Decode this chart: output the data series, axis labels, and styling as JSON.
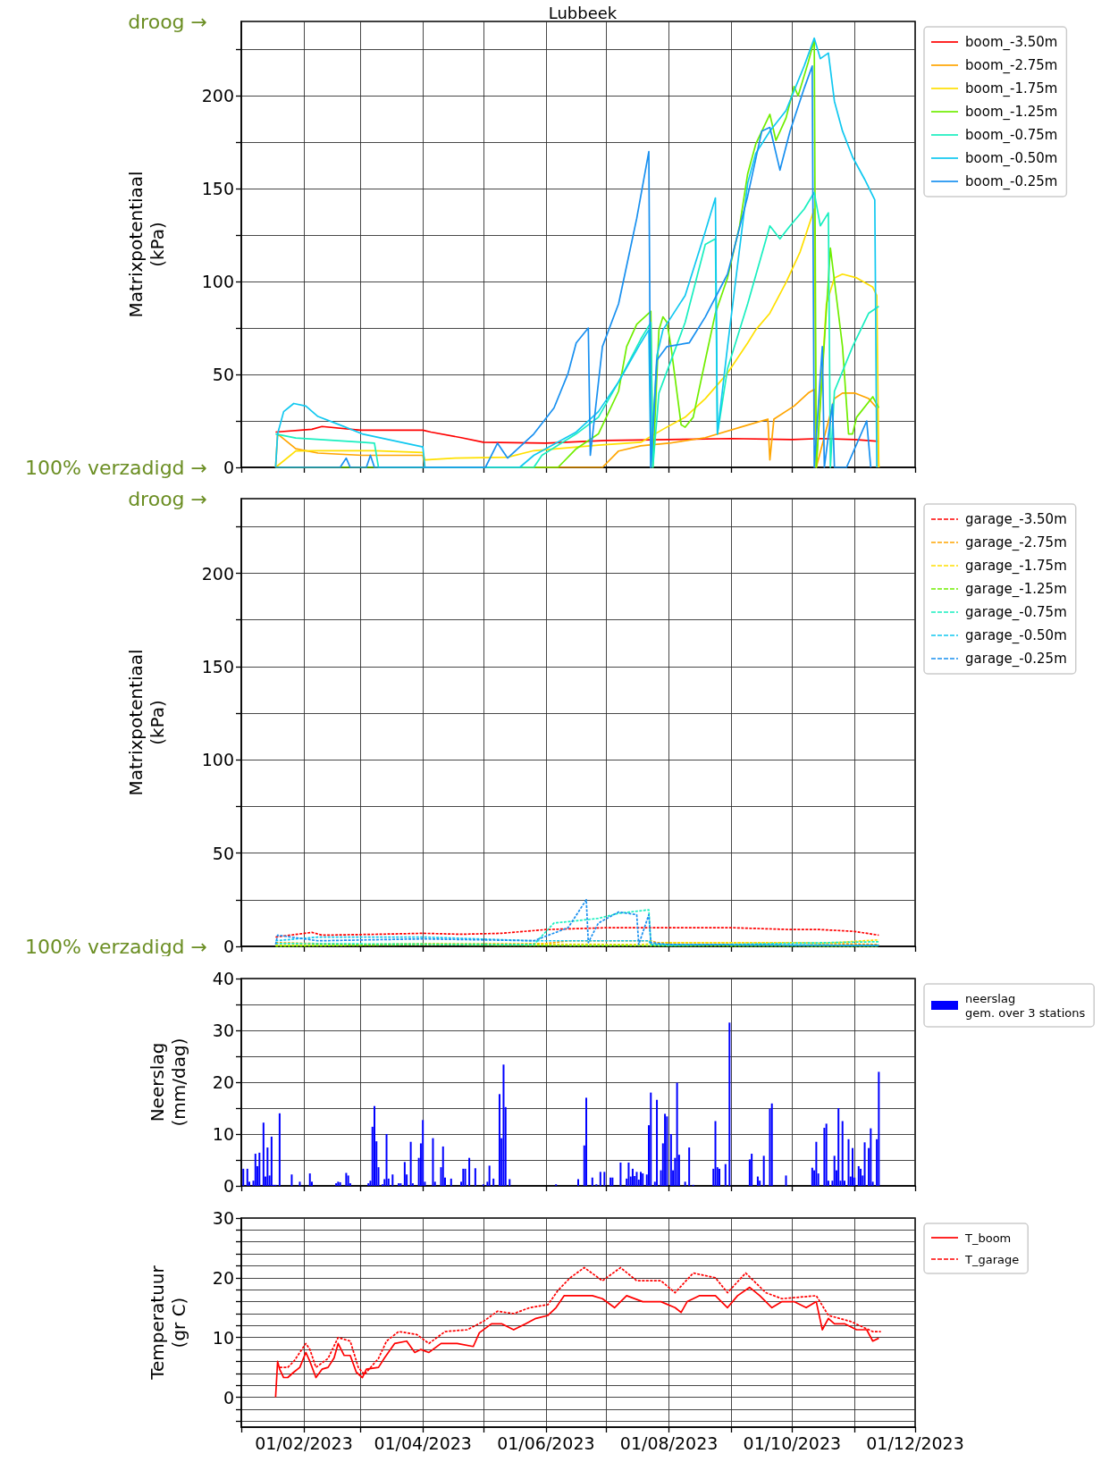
{
  "chart_data": [
    {
      "type": "line",
      "title": "Lubbeek",
      "ylabel": "Matrixpotentiaal\n(kPa)",
      "xlim": [
        "2023-01-01",
        "2023-12-01"
      ],
      "xticks": [
        {
          "value": "2023-01-01",
          "label": null
        },
        {
          "value": "2023-02-01",
          "label": null
        },
        {
          "value": "2023-03-01",
          "label": null
        },
        {
          "value": "2023-04-01",
          "label": null
        },
        {
          "value": "2023-05-01",
          "label": null
        },
        {
          "value": "2023-06-01",
          "label": null
        },
        {
          "value": "2023-07-01",
          "label": null
        },
        {
          "value": "2023-08-01",
          "label": null
        },
        {
          "value": "2023-09-01",
          "label": null
        },
        {
          "value": "2023-10-01",
          "label": null
        },
        {
          "value": "2023-11-01",
          "label": null
        },
        {
          "value": "2023-12-01",
          "label": null
        }
      ],
      "ylim": [
        0,
        240
      ],
      "yticks": [
        0,
        {
          "value": 25,
          "label": null
        },
        50,
        {
          "value": 75,
          "label": null
        },
        100,
        {
          "value": 125,
          "label": null
        },
        150,
        {
          "value": 175,
          "label": null
        },
        200,
        {
          "value": 225,
          "label": null
        }
      ],
      "tick_labels": "y",
      "grid": true,
      "legend": "top right",
      "marker": "none",
      "annotations": [
        "droog →",
        "100% verzadigd →"
      ],
      "series": [
        {
          "name": "boom_-3.50m",
          "color": "#ff0000",
          "x": [
            "2023-01-18",
            "2023-02-05",
            "2023-02-10",
            "2023-03-01",
            "2023-03-20",
            "2023-04-01",
            "2023-04-05",
            "2023-04-20",
            "2023-05-01",
            "2023-06-01",
            "2023-07-01",
            "2023-08-01",
            "2023-09-01",
            "2023-10-01",
            "2023-10-15",
            "2023-11-01",
            "2023-11-13"
          ],
          "values": [
            19,
            20.5,
            22,
            20,
            20,
            20,
            19,
            16,
            13.5,
            13,
            14.5,
            15,
            15.5,
            15,
            15.5,
            15,
            14
          ]
        },
        {
          "name": "boom_-2.75m",
          "color": "#ffa500",
          "x": [
            "2023-01-18",
            "2023-01-19",
            "2023-01-28",
            "2023-02-08",
            "2023-03-02",
            "2023-04-01",
            "2023-04-02",
            "2023-06-29",
            "2023-07-07",
            "2023-07-18",
            "2023-08-01",
            "2023-08-19",
            "2023-09-09",
            "2023-09-19",
            "2023-09-20",
            "2023-09-22",
            "2023-10-02",
            "2023-10-09",
            "2023-10-12",
            "2023-10-13",
            "2023-10-22",
            "2023-10-26",
            "2023-11-01",
            "2023-11-08",
            "2023-11-12",
            "2023-11-13"
          ],
          "values": [
            0,
            18,
            10,
            7.7,
            6.5,
            6.5,
            0,
            0,
            8.8,
            11.6,
            13,
            16,
            22.8,
            26,
            4,
            26,
            33,
            40,
            42,
            0,
            37,
            40,
            40,
            37,
            32,
            0
          ]
        },
        {
          "name": "boom_-1.75m",
          "color": "#ffe000",
          "x": [
            "2023-01-18",
            "2023-01-28",
            "2023-02-08",
            "2023-03-08",
            "2023-04-01",
            "2023-04-02",
            "2023-04-17",
            "2023-05-13",
            "2023-05-26",
            "2023-06-27",
            "2023-07-18",
            "2023-07-29",
            "2023-08-09",
            "2023-08-19",
            "2023-08-30",
            "2023-09-09",
            "2023-09-13",
            "2023-09-20",
            "2023-09-28",
            "2023-10-05",
            "2023-10-12",
            "2023-10-13",
            "2023-10-18",
            "2023-10-22",
            "2023-10-26",
            "2023-11-02",
            "2023-11-10",
            "2023-11-12",
            "2023-11-13"
          ],
          "values": [
            0,
            8.8,
            9,
            9,
            8,
            4,
            5,
            5.5,
            9,
            12,
            13.5,
            20.5,
            27,
            37,
            50.7,
            67,
            74,
            83,
            99.5,
            116,
            139,
            0,
            88,
            102,
            104,
            102,
            97,
            92.5,
            0
          ]
        },
        {
          "name": "boom_-1.25m",
          "color": "#70ee00",
          "x": [
            "2023-01-18",
            "2023-06-07",
            "2023-06-16",
            "2023-06-27",
            "2023-07-07",
            "2023-07-11",
            "2023-07-16",
            "2023-07-23",
            "2023-07-24",
            "2023-07-27",
            "2023-07-29",
            "2023-07-31",
            "2023-08-02",
            "2023-08-07",
            "2023-08-09",
            "2023-08-13",
            "2023-08-19",
            "2023-08-24",
            "2023-08-30",
            "2023-09-05",
            "2023-09-09",
            "2023-09-13",
            "2023-09-20",
            "2023-09-23",
            "2023-09-28",
            "2023-10-02",
            "2023-10-04",
            "2023-10-09",
            "2023-10-12",
            "2023-10-13",
            "2023-10-20",
            "2023-10-26",
            "2023-10-29",
            "2023-10-31",
            "2023-11-02",
            "2023-11-10",
            "2023-11-13"
          ],
          "values": [
            0,
            0,
            10,
            18,
            41,
            65,
            77,
            84,
            0,
            74,
            81,
            78,
            65,
            23,
            21.6,
            27,
            57.7,
            83,
            102,
            130,
            158,
            174,
            190,
            176,
            188,
            205,
            200,
            218,
            230,
            0,
            118,
            65,
            18,
            18,
            27,
            38,
            32
          ]
        },
        {
          "name": "boom_-0.75m",
          "color": "#19efc0",
          "x": [
            "2023-01-18",
            "2023-01-28",
            "2023-03-02",
            "2023-03-08",
            "2023-03-10",
            "2023-05-26",
            "2023-05-30",
            "2023-06-16",
            "2023-06-27",
            "2023-07-07",
            "2023-07-18",
            "2023-07-23",
            "2023-07-24",
            "2023-07-27",
            "2023-08-09",
            "2023-08-19",
            "2023-08-24",
            "2023-08-25",
            "2023-08-30",
            "2023-09-09",
            "2023-09-20",
            "2023-09-25",
            "2023-09-30",
            "2023-10-07",
            "2023-10-12",
            "2023-10-15",
            "2023-10-19",
            "2023-10-20",
            "2023-10-22",
            "2023-10-31",
            "2023-11-08",
            "2023-11-13"
          ],
          "values": [
            18,
            15.8,
            13.5,
            13,
            0,
            0,
            6.5,
            18,
            27,
            46,
            69,
            78,
            0,
            40,
            78,
            120,
            123,
            18,
            53,
            88,
            130,
            123,
            130,
            139,
            148,
            130,
            137,
            0,
            41,
            65,
            83,
            86.7
          ]
        },
        {
          "name": "boom_-0.50m",
          "color": "#10c8f0",
          "x": [
            "2023-01-18",
            "2023-01-19",
            "2023-01-22",
            "2023-01-27",
            "2023-02-02",
            "2023-02-08",
            "2023-02-19",
            "2023-03-02",
            "2023-04-01",
            "2023-04-02",
            "2023-05-19",
            "2023-05-26",
            "2023-06-16",
            "2023-06-27",
            "2023-07-07",
            "2023-07-18",
            "2023-07-22",
            "2023-07-23",
            "2023-07-26",
            "2023-07-29",
            "2023-08-09",
            "2023-08-19",
            "2023-08-24",
            "2023-08-25",
            "2023-08-30",
            "2023-09-09",
            "2023-09-13",
            "2023-09-20",
            "2023-09-28",
            "2023-10-07",
            "2023-10-12",
            "2023-10-15",
            "2023-10-19",
            "2023-10-22",
            "2023-10-26",
            "2023-10-31",
            "2023-11-06",
            "2023-11-11",
            "2023-11-12"
          ],
          "values": [
            0,
            18,
            30,
            34.4,
            33,
            27.4,
            22.8,
            18,
            11,
            0,
            0,
            6.5,
            19,
            30,
            46,
            67,
            74,
            0,
            60,
            74,
            92.5,
            127,
            145,
            18,
            65,
            153,
            169,
            181,
            192,
            216,
            231,
            220,
            223,
            197,
            181,
            167,
            155,
            144,
            0
          ]
        },
        {
          "name": "boom_-0.25m",
          "color": "#1890f0",
          "x": [
            "2023-01-18",
            "2023-02-19",
            "2023-02-22",
            "2023-02-24",
            "2023-03-04",
            "2023-03-06",
            "2023-03-08",
            "2023-05-02",
            "2023-05-08",
            "2023-05-13",
            "2023-05-26",
            "2023-06-05",
            "2023-06-12",
            "2023-06-16",
            "2023-06-22",
            "2023-06-23",
            "2023-06-29",
            "2023-07-07",
            "2023-07-16",
            "2023-07-22",
            "2023-07-23",
            "2023-07-26",
            "2023-07-31",
            "2023-08-11",
            "2023-08-19",
            "2023-08-30",
            "2023-09-09",
            "2023-09-16",
            "2023-09-20",
            "2023-09-25",
            "2023-09-30",
            "2023-10-07",
            "2023-10-11",
            "2023-10-12",
            "2023-10-16",
            "2023-10-17",
            "2023-10-21",
            "2023-10-22",
            "2023-10-28",
            "2023-11-07",
            "2023-11-09"
          ],
          "values": [
            0,
            0,
            5,
            0,
            0,
            6.5,
            0,
            0,
            13,
            5,
            18,
            32,
            50.7,
            67,
            75,
            6.5,
            65,
            88,
            134,
            170,
            0,
            57.7,
            65,
            67,
            81,
            104,
            146,
            181,
            183,
            160,
            181,
            204,
            216,
            0,
            65,
            0,
            34,
            0,
            0,
            25,
            0
          ]
        }
      ]
    },
    {
      "type": "line",
      "ylabel": "Matrixpotentiaal\n(kPa)",
      "xlim": [
        "2023-01-01",
        "2023-12-01"
      ],
      "xticks": [
        {
          "value": "2023-01-01",
          "label": null
        },
        {
          "value": "2023-02-01",
          "label": null
        },
        {
          "value": "2023-03-01",
          "label": null
        },
        {
          "value": "2023-04-01",
          "label": null
        },
        {
          "value": "2023-05-01",
          "label": null
        },
        {
          "value": "2023-06-01",
          "label": null
        },
        {
          "value": "2023-07-01",
          "label": null
        },
        {
          "value": "2023-08-01",
          "label": null
        },
        {
          "value": "2023-09-01",
          "label": null
        },
        {
          "value": "2023-10-01",
          "label": null
        },
        {
          "value": "2023-11-01",
          "label": null
        },
        {
          "value": "2023-12-01",
          "label": null
        }
      ],
      "ylim": [
        0,
        240
      ],
      "yticks": [
        0,
        {
          "value": 25,
          "label": null
        },
        50,
        {
          "value": 75,
          "label": null
        },
        100,
        {
          "value": 125,
          "label": null
        },
        150,
        {
          "value": 175,
          "label": null
        },
        200,
        {
          "value": 225,
          "label": null
        }
      ],
      "tick_labels": "y",
      "grid": true,
      "legend": "top right",
      "marker": "none",
      "annotations": [
        "droog →",
        "100% verzadigd →"
      ],
      "series": [
        {
          "name": "garage_-3.50m",
          "color": "#ff0000",
          "line_style": "dashed",
          "x": [
            "2023-01-18",
            "2023-02-05",
            "2023-02-10",
            "2023-03-10",
            "2023-04-01",
            "2023-04-20",
            "2023-05-10",
            "2023-06-01",
            "2023-07-01",
            "2023-09-01",
            "2023-10-01",
            "2023-10-15",
            "2023-11-01",
            "2023-11-13"
          ],
          "values": [
            5,
            7.5,
            6,
            6.5,
            7,
            6.5,
            7,
            9,
            10,
            10,
            9,
            9,
            8,
            6
          ]
        },
        {
          "name": "garage_-2.75m",
          "color": "#ffa500",
          "line_style": "dashed",
          "x": [
            "2023-01-18",
            "2023-03-01",
            "2023-06-01",
            "2023-06-12",
            "2023-07-23",
            "2023-07-26",
            "2023-09-30",
            "2023-11-13"
          ],
          "values": [
            2,
            1,
            1.5,
            3,
            3,
            2,
            2,
            1
          ]
        },
        {
          "name": "garage_-1.75m",
          "color": "#ffe000",
          "line_style": "dashed",
          "x": [
            "2023-01-18",
            "2023-04-01",
            "2023-07-18",
            "2023-08-01",
            "2023-09-30",
            "2023-10-15",
            "2023-11-13"
          ],
          "values": [
            0.5,
            1.5,
            1,
            2,
            2,
            1.5,
            3.5
          ]
        },
        {
          "name": "garage_-1.25m",
          "color": "#70ee00",
          "line_style": "dashed",
          "x": [
            "2023-01-18",
            "2023-04-01",
            "2023-06-01",
            "2023-11-13"
          ],
          "values": [
            0,
            1,
            0.5,
            0
          ]
        },
        {
          "name": "garage_-0.75m",
          "color": "#19efc0",
          "line_style": "dashed",
          "x": [
            "2023-01-18",
            "2023-05-26",
            "2023-06-05",
            "2023-06-16",
            "2023-06-27",
            "2023-07-07",
            "2023-07-22",
            "2023-07-23",
            "2023-08-01",
            "2023-11-13"
          ],
          "values": [
            1.5,
            1,
            12.5,
            13.7,
            15,
            17.7,
            19.6,
            1,
            0.5,
            2.5
          ]
        },
        {
          "name": "garage_-0.50m",
          "color": "#10c8f0",
          "line_style": "dashed",
          "x": [
            "2023-01-18",
            "2023-02-08",
            "2023-04-01",
            "2023-05-26",
            "2023-07-22",
            "2023-07-23",
            "2023-11-13"
          ],
          "values": [
            3,
            5,
            5,
            3,
            3,
            1,
            0.5
          ]
        },
        {
          "name": "garage_-0.25m",
          "color": "#1890f0",
          "line_style": "dashed",
          "x": [
            "2023-01-18",
            "2023-01-19",
            "2023-02-08",
            "2023-04-01",
            "2023-05-26",
            "2023-06-12",
            "2023-06-21",
            "2023-06-22",
            "2023-06-27",
            "2023-07-07",
            "2023-07-16",
            "2023-07-17",
            "2023-07-22",
            "2023-07-23",
            "2023-08-01",
            "2023-11-13"
          ],
          "values": [
            1,
            6,
            3,
            4,
            3,
            10,
            25,
            2,
            12.5,
            18.4,
            17,
            1,
            17,
            2,
            1,
            0.5
          ]
        }
      ]
    },
    {
      "type": "bar",
      "ylabel": "Neerslag\n(mm/dag)",
      "xlim": [
        "2023-01-01",
        "2023-12-01"
      ],
      "xticks": [
        {
          "value": "2023-01-01",
          "label": null
        },
        {
          "value": "2023-02-01",
          "label": null
        },
        {
          "value": "2023-03-01",
          "label": null
        },
        {
          "value": "2023-04-01",
          "label": null
        },
        {
          "value": "2023-05-01",
          "label": null
        },
        {
          "value": "2023-06-01",
          "label": null
        },
        {
          "value": "2023-07-01",
          "label": null
        },
        {
          "value": "2023-08-01",
          "label": null
        },
        {
          "value": "2023-09-01",
          "label": null
        },
        {
          "value": "2023-10-01",
          "label": null
        },
        {
          "value": "2023-11-01",
          "label": null
        },
        {
          "value": "2023-12-01",
          "label": null
        }
      ],
      "ylim": [
        0,
        40
      ],
      "yticks": [
        0,
        {
          "value": 5,
          "label": null
        },
        10,
        {
          "value": 15,
          "label": null
        },
        20,
        {
          "value": 25,
          "label": null
        },
        30,
        {
          "value": 35,
          "label": null
        },
        40
      ],
      "tick_labels": "y",
      "grid": true,
      "legend": "top right",
      "series": [
        {
          "name": "neerslag\ngem. over 3 stations",
          "color": "#0000ff",
          "x": [
            "2023-01-02",
            "2023-01-04",
            "2023-01-05",
            "2023-01-07",
            "2023-01-08",
            "2023-01-09",
            "2023-01-10",
            "2023-01-12",
            "2023-01-13",
            "2023-01-14",
            "2023-01-15",
            "2023-01-16",
            "2023-01-17",
            "2023-01-18",
            "2023-01-20",
            "2023-01-26",
            "2023-01-30",
            "2023-02-04",
            "2023-02-05",
            "2023-02-17",
            "2023-02-18",
            "2023-02-19",
            "2023-02-22",
            "2023-02-23",
            "2023-02-24",
            "2023-03-05",
            "2023-03-06",
            "2023-03-07",
            "2023-03-08",
            "2023-03-09",
            "2023-03-10",
            "2023-03-12",
            "2023-03-13",
            "2023-03-14",
            "2023-03-15",
            "2023-03-17",
            "2023-03-20",
            "2023-03-21",
            "2023-03-23",
            "2023-03-24",
            "2023-03-26",
            "2023-03-27",
            "2023-03-30",
            "2023-03-31",
            "2023-04-01",
            "2023-04-02",
            "2023-04-06",
            "2023-04-07",
            "2023-04-10",
            "2023-04-11",
            "2023-04-12",
            "2023-04-15",
            "2023-04-20",
            "2023-04-21",
            "2023-04-22",
            "2023-04-24",
            "2023-04-27",
            "2023-05-01",
            "2023-05-03",
            "2023-05-04",
            "2023-05-06",
            "2023-05-09",
            "2023-05-10",
            "2023-05-11",
            "2023-05-12",
            "2023-05-14",
            "2023-06-06",
            "2023-06-17",
            "2023-06-20",
            "2023-06-21",
            "2023-06-24",
            "2023-06-26",
            "2023-06-28",
            "2023-06-30",
            "2023-07-03",
            "2023-07-04",
            "2023-07-08",
            "2023-07-11",
            "2023-07-12",
            "2023-07-13",
            "2023-07-14",
            "2023-07-15",
            "2023-07-16",
            "2023-07-17",
            "2023-07-18",
            "2023-07-19",
            "2023-07-21",
            "2023-07-22",
            "2023-07-23",
            "2023-07-25",
            "2023-07-26",
            "2023-07-28",
            "2023-07-29",
            "2023-07-30",
            "2023-07-31",
            "2023-08-02",
            "2023-08-03",
            "2023-08-04",
            "2023-08-05",
            "2023-08-06",
            "2023-08-09",
            "2023-08-11",
            "2023-08-13",
            "2023-08-23",
            "2023-08-24",
            "2023-08-25",
            "2023-08-26",
            "2023-08-29",
            "2023-08-31",
            "2023-09-10",
            "2023-09-11",
            "2023-09-14",
            "2023-09-15",
            "2023-09-17",
            "2023-09-20",
            "2023-09-21",
            "2023-09-28",
            "2023-10-11",
            "2023-10-12",
            "2023-10-13",
            "2023-10-14",
            "2023-10-17",
            "2023-10-18",
            "2023-10-19",
            "2023-10-21",
            "2023-10-22",
            "2023-10-23",
            "2023-10-24",
            "2023-10-25",
            "2023-10-26",
            "2023-10-27",
            "2023-10-29",
            "2023-10-30",
            "2023-10-31",
            "2023-11-01",
            "2023-11-03",
            "2023-11-04",
            "2023-11-05",
            "2023-11-06",
            "2023-11-08",
            "2023-11-09",
            "2023-11-10",
            "2023-11-12",
            "2023-11-13"
          ],
          "values": [
            3.3,
            3.3,
            0.8,
            1,
            6.2,
            3.8,
            6.4,
            12.2,
            1.8,
            7.4,
            2,
            9.5,
            0.2,
            0.2,
            14,
            2.2,
            0.8,
            2.4,
            0.8,
            0.5,
            0.8,
            0.7,
            2.5,
            2,
            0.5,
            0.5,
            1,
            11.4,
            15.4,
            8.6,
            3.6,
            0.3,
            1.3,
            10,
            1.4,
            2.2,
            0.5,
            0.5,
            4.6,
            2.2,
            8.5,
            0.5,
            5.4,
            8.2,
            12.7,
            0.8,
            9.2,
            0.8,
            3.6,
            7.6,
            1.6,
            1.4,
            0.8,
            3.3,
            3.3,
            5.4,
            3.4,
            0.3,
            0.8,
            3.9,
            1.4,
            17.7,
            9.2,
            23.4,
            15.2,
            1.3,
            0.3,
            1.3,
            7.8,
            17,
            1.6,
            0.3,
            2.7,
            2.7,
            1.6,
            1.6,
            4.5,
            1.4,
            4.5,
            1.8,
            3.3,
            1.9,
            2.7,
            1.2,
            2.7,
            2.4,
            2.2,
            11.7,
            18,
            0.8,
            16.6,
            3,
            8.2,
            13.9,
            13.4,
            10,
            3,
            5.4,
            19.9,
            6,
            0.8,
            7.4,
            0.2,
            3.3,
            12.5,
            3.6,
            3.3,
            4.2,
            31.5,
            5.1,
            6.2,
            1.8,
            1,
            5.8,
            14.9,
            15.9,
            2,
            3.5,
            3,
            8.5,
            2.4,
            11.2,
            12,
            1,
            1,
            5.8,
            3,
            15,
            1,
            12.5,
            1,
            9,
            1.8,
            7.3,
            1.6,
            3.8,
            3.3,
            2,
            8.4,
            7.3,
            11.1,
            0.8,
            9,
            22
          ]
        }
      ]
    },
    {
      "type": "line",
      "ylabel": "Temperatuur\n(gr C)",
      "xlim": [
        "2023-01-01",
        "2023-12-01"
      ],
      "xticks": [
        {
          "value": "2023-01-01",
          "label": null
        },
        {
          "value": "2023-02-01",
          "label": "01/02/2023"
        },
        {
          "value": "2023-03-01",
          "label": null
        },
        {
          "value": "2023-04-01",
          "label": "01/04/2023"
        },
        {
          "value": "2023-05-01",
          "label": null
        },
        {
          "value": "2023-06-01",
          "label": "01/06/2023"
        },
        {
          "value": "2023-07-01",
          "label": null
        },
        {
          "value": "2023-08-01",
          "label": "01/08/2023"
        },
        {
          "value": "2023-09-01",
          "label": null
        },
        {
          "value": "2023-10-01",
          "label": "01/10/2023"
        },
        {
          "value": "2023-11-01",
          "label": null
        },
        {
          "value": "2023-12-01",
          "label": "01/12/2023"
        }
      ],
      "ylim": [
        -5,
        30
      ],
      "yticks": [
        {
          "value": -4,
          "label": null
        },
        {
          "value": -2,
          "label": null
        },
        0,
        {
          "value": 2,
          "label": null
        },
        {
          "value": 4,
          "label": null
        },
        {
          "value": 6,
          "label": null
        },
        {
          "value": 8,
          "label": null
        },
        10,
        {
          "value": 12,
          "label": null
        },
        {
          "value": 14,
          "label": null
        },
        {
          "value": 16,
          "label": null
        },
        {
          "value": 18,
          "label": null
        },
        20,
        {
          "value": 22,
          "label": null
        },
        {
          "value": 24,
          "label": null
        },
        {
          "value": 26,
          "label": null
        },
        {
          "value": 28,
          "label": null
        },
        30
      ],
      "grid": true,
      "legend": "top right",
      "marker": "none",
      "series": [
        {
          "name": "T_boom",
          "color": "#ff0000",
          "line_style": "solid",
          "x": [
            "2023-01-18",
            "2023-01-19",
            "2023-01-20",
            "2023-01-22",
            "2023-01-24",
            "2023-01-27",
            "2023-01-30",
            "2023-02-02",
            "2023-02-04",
            "2023-02-07",
            "2023-02-10",
            "2023-02-13",
            "2023-02-16",
            "2023-02-18",
            "2023-02-21",
            "2023-02-24",
            "2023-02-27",
            "2023-03-02",
            "2023-03-04",
            "2023-03-10",
            "2023-03-13",
            "2023-03-18",
            "2023-03-24",
            "2023-03-28",
            "2023-03-31",
            "2023-04-04",
            "2023-04-10",
            "2023-04-18",
            "2023-04-26",
            "2023-04-29",
            "2023-05-05",
            "2023-05-10",
            "2023-05-16",
            "2023-05-22",
            "2023-05-27",
            "2023-06-02",
            "2023-06-06",
            "2023-06-10",
            "2023-06-13",
            "2023-06-18",
            "2023-06-24",
            "2023-06-29",
            "2023-07-05",
            "2023-07-11",
            "2023-07-19",
            "2023-07-28",
            "2023-08-04",
            "2023-08-07",
            "2023-08-10",
            "2023-08-16",
            "2023-08-24",
            "2023-08-30",
            "2023-09-04",
            "2023-09-10",
            "2023-09-15",
            "2023-09-21",
            "2023-09-26",
            "2023-10-02",
            "2023-10-08",
            "2023-10-13",
            "2023-10-16",
            "2023-10-19",
            "2023-10-22",
            "2023-10-27",
            "2023-11-02",
            "2023-11-07",
            "2023-11-10",
            "2023-11-13"
          ],
          "values": [
            0,
            6,
            4.7,
            3.3,
            3.3,
            4.2,
            5,
            7.5,
            6,
            3.3,
            4.7,
            5,
            6.6,
            9,
            7,
            7,
            4.2,
            3.3,
            4.7,
            5,
            6.6,
            9,
            9.4,
            7.5,
            8,
            7.5,
            9,
            9,
            8.5,
            10.8,
            12.3,
            12.3,
            11.3,
            12.3,
            13.2,
            13.7,
            15,
            17,
            17,
            17,
            17,
            16.5,
            15,
            17,
            16,
            16,
            15,
            14.2,
            16,
            17,
            17,
            15,
            17,
            18.4,
            17,
            15,
            16,
            16,
            15,
            16,
            11.3,
            13.2,
            12.3,
            12.3,
            11.3,
            11.3,
            9.4,
            9.9
          ]
        },
        {
          "name": "T_garage",
          "color": "#ff0000",
          "line_style": "dashed",
          "x": [
            "2023-01-20",
            "2023-01-24",
            "2023-01-27",
            "2023-02-02",
            "2023-02-04",
            "2023-02-07",
            "2023-02-13",
            "2023-02-18",
            "2023-02-24",
            "2023-02-28",
            "2023-03-03",
            "2023-03-10",
            "2023-03-14",
            "2023-03-20",
            "2023-03-29",
            "2023-04-04",
            "2023-04-12",
            "2023-04-23",
            "2023-05-01",
            "2023-05-08",
            "2023-05-16",
            "2023-05-24",
            "2023-06-02",
            "2023-06-07",
            "2023-06-13",
            "2023-06-20",
            "2023-06-29",
            "2023-07-08",
            "2023-07-16",
            "2023-07-28",
            "2023-08-04",
            "2023-08-13",
            "2023-08-24",
            "2023-08-30",
            "2023-09-08",
            "2023-09-18",
            "2023-09-26",
            "2023-10-13",
            "2023-10-19",
            "2023-10-30",
            "2023-11-10",
            "2023-11-14"
          ],
          "values": [
            5,
            5,
            6,
            9,
            8,
            5,
            6.5,
            10,
            9.4,
            5,
            3.8,
            6.5,
            9.4,
            11,
            10.5,
            9,
            11,
            11.3,
            12.7,
            14.4,
            14,
            15,
            15.5,
            17.9,
            20,
            21.7,
            19.5,
            21.7,
            19.5,
            19.5,
            17.5,
            20.8,
            20,
            17.5,
            20.8,
            17.5,
            16.5,
            17,
            13.7,
            12.7,
            11,
            11
          ]
        }
      ]
    }
  ]
}
